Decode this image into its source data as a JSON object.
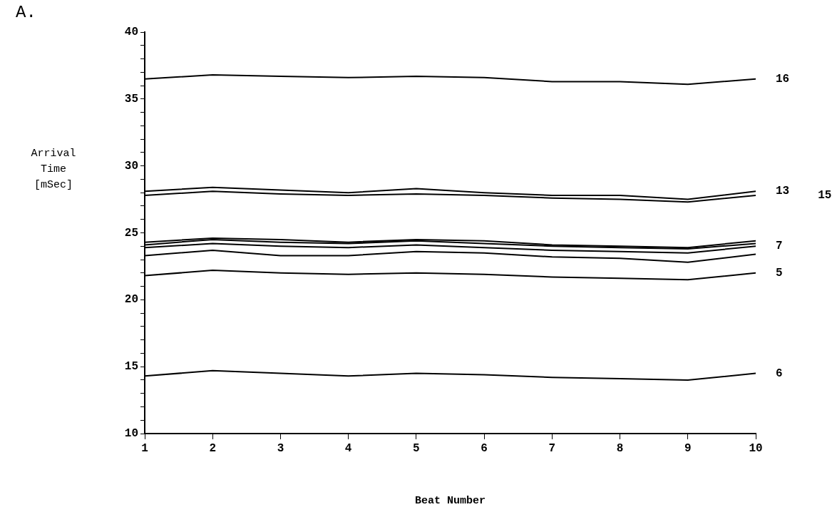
{
  "chart_data": {
    "type": "line",
    "title": "A.",
    "xlabel": "Beat Number",
    "ylabel": "Arrival\nTime\n[mSec]",
    "x": [
      1,
      2,
      3,
      4,
      5,
      6,
      7,
      8,
      9,
      10
    ],
    "series": [
      {
        "name": "16",
        "color": "#000000",
        "values": [
          36.5,
          36.8,
          36.7,
          36.6,
          36.7,
          36.6,
          36.3,
          36.3,
          36.1,
          36.5
        ]
      },
      {
        "name": "13",
        "color": "#000000",
        "values": [
          28.1,
          28.4,
          28.2,
          28.0,
          28.3,
          28.0,
          27.8,
          27.8,
          27.5,
          28.1
        ]
      },
      {
        "name": "15",
        "color": "#000000",
        "values": [
          27.8,
          28.1,
          27.9,
          27.8,
          27.9,
          27.8,
          27.6,
          27.5,
          27.3,
          27.8
        ]
      },
      {
        "color": "#000000",
        "values": [
          24.3,
          24.6,
          24.5,
          24.3,
          24.5,
          24.4,
          24.1,
          24.0,
          23.9,
          24.4
        ]
      },
      {
        "color": "#000000",
        "values": [
          24.1,
          24.5,
          24.3,
          24.2,
          24.4,
          24.2,
          24.0,
          23.9,
          23.8,
          24.2
        ]
      },
      {
        "name": "7",
        "color": "#000000",
        "values": [
          23.9,
          24.2,
          24.0,
          23.9,
          24.1,
          23.9,
          23.7,
          23.6,
          23.5,
          24.0
        ]
      },
      {
        "color": "#000000",
        "values": [
          23.3,
          23.7,
          23.3,
          23.3,
          23.6,
          23.5,
          23.2,
          23.1,
          22.8,
          23.4
        ]
      },
      {
        "name": "5",
        "color": "#000000",
        "values": [
          21.8,
          22.2,
          22.0,
          21.9,
          22.0,
          21.9,
          21.7,
          21.6,
          21.5,
          22.0
        ]
      },
      {
        "name": "6",
        "color": "#000000",
        "values": [
          14.3,
          14.7,
          14.5,
          14.3,
          14.5,
          14.4,
          14.2,
          14.1,
          14.0,
          14.5
        ]
      }
    ],
    "xlim": [
      1,
      10
    ],
    "xticks": [
      1,
      2,
      3,
      4,
      5,
      6,
      7,
      8,
      9,
      10
    ],
    "ylim": [
      10,
      40
    ],
    "yticks": [
      10,
      {
        "value": 11,
        "label": null
      },
      {
        "value": 12,
        "label": null
      },
      {
        "value": 13,
        "label": null
      },
      {
        "value": 14,
        "label": null
      },
      15,
      {
        "value": 16,
        "label": null
      },
      {
        "value": 17,
        "label": null
      },
      {
        "value": 18,
        "label": null
      },
      {
        "value": 19,
        "label": null
      },
      20,
      {
        "value": 21,
        "label": null
      },
      {
        "value": 22,
        "label": null
      },
      {
        "value": 23,
        "label": null
      },
      {
        "value": 24,
        "label": null
      },
      25,
      {
        "value": 26,
        "label": null
      },
      {
        "value": 27,
        "label": null
      },
      {
        "value": 28,
        "label": null
      },
      {
        "value": 29,
        "label": null
      },
      30,
      {
        "value": 31,
        "label": null
      },
      {
        "value": 32,
        "label": null
      },
      {
        "value": 33,
        "label": null
      },
      {
        "value": 34,
        "label": null
      },
      35,
      {
        "value": 36,
        "label": null
      },
      {
        "value": 37,
        "label": null
      },
      {
        "value": 38,
        "label": null
      },
      {
        "value": 39,
        "label": null
      },
      40
    ],
    "grid": false,
    "legend": false,
    "marker": "none",
    "line_style": "solid"
  }
}
